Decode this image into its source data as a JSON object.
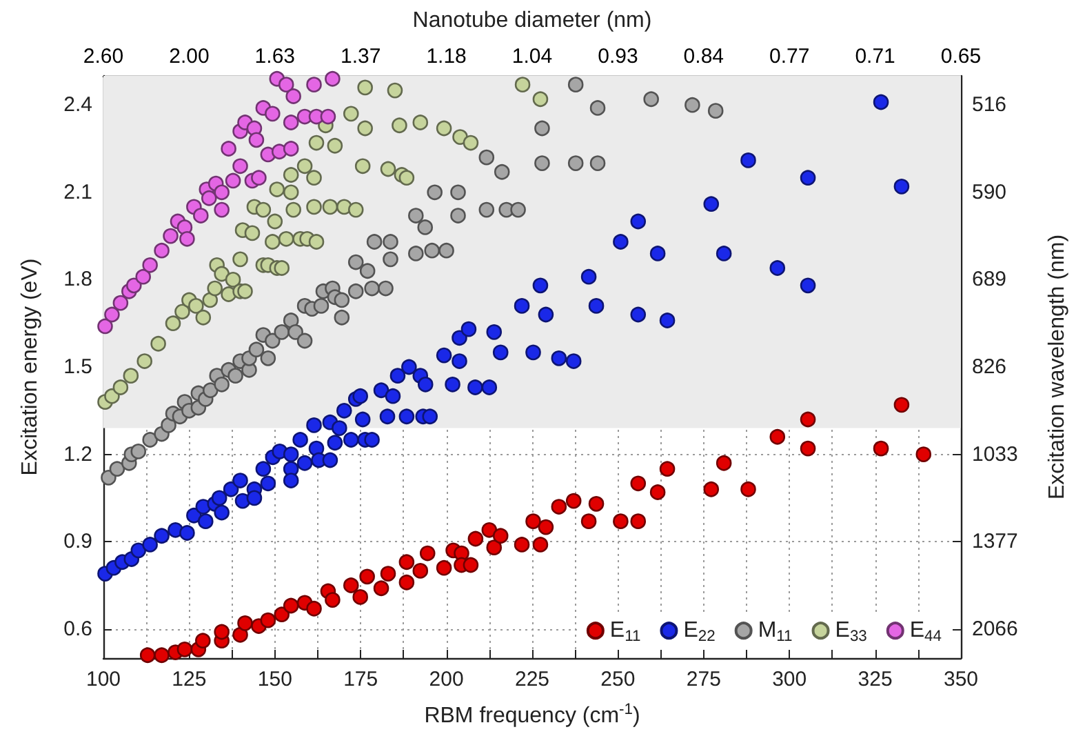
{
  "chart_data": {
    "type": "scatter",
    "xlabel": "RBM frequency (cm$^{-1}$)",
    "ylabel": "Excitation energy (eV)",
    "y2label": "Excitation wavelength (nm)",
    "x2label": "Nanotube diameter (nm)",
    "xlim": [
      100,
      350
    ],
    "ylim": [
      0.5,
      2.5
    ],
    "xticks": [
      100,
      {
        "value": 112.5,
        "label": null
      },
      125,
      {
        "value": 137.5,
        "label": null
      },
      150,
      {
        "value": 162.5,
        "label": null
      },
      175,
      {
        "value": 187.5,
        "label": null
      },
      200,
      {
        "value": 212.5,
        "label": null
      },
      225,
      {
        "value": 237.5,
        "label": null
      },
      250,
      {
        "value": 262.5,
        "label": null
      },
      275,
      {
        "value": 287.5,
        "label": null
      },
      300,
      {
        "value": 312.5,
        "label": null
      },
      325,
      {
        "value": 337.5,
        "label": null
      },
      350
    ],
    "yticks": [
      0.6,
      0.9,
      1.2,
      1.5,
      1.8,
      2.1,
      2.4
    ],
    "annotations": [
      "2.60",
      "2.00",
      "1.63",
      "1.37",
      "1.18",
      "1.04",
      "0.93",
      "0.84",
      "0.77",
      "0.71",
      "0.65"
    ],
    "y2_categories": [
      null,
      "516",
      null,
      null,
      "590",
      null,
      null,
      "689",
      null,
      null,
      "826",
      null,
      null,
      "1033",
      null,
      null,
      "1377",
      null,
      null,
      "2066",
      null
    ],
    "grid": true,
    "marker": "circle",
    "legend": "bottom right",
    "bands": [
      {
        "axis": "y",
        "from": 1.29,
        "to": 2.5,
        "color": "#ebebeb"
      }
    ],
    "series": [
      {
        "name": "E$_{11}$",
        "color": "#e00000",
        "x": [
          112.9,
          117,
          121,
          123.7,
          127.7,
          129,
          134.5,
          134.5,
          139.9,
          141.3,
          145.3,
          148,
          152,
          154.7,
          158.7,
          161.4,
          165.5,
          166.8,
          172.2,
          174.9,
          176.9,
          181,
          183,
          188.4,
          188.4,
          192.4,
          194.5,
          199.3,
          202,
          204.4,
          204.4,
          207.1,
          208.5,
          212.5,
          213.9,
          215.8,
          222,
          225.3,
          227.4,
          229,
          232.8,
          237.1,
          241.5,
          243.7,
          250.8,
          255.9,
          255.9,
          261.6,
          264.4,
          277.2,
          280.9,
          288,
          296.5,
          305.4,
          305.4,
          326.7,
          332.7,
          339.1
        ],
        "values": [
          0.51,
          0.51,
          0.52,
          0.53,
          0.53,
          0.56,
          0.56,
          0.59,
          0.58,
          0.62,
          0.61,
          0.63,
          0.65,
          0.68,
          0.69,
          0.67,
          0.73,
          0.7,
          0.75,
          0.71,
          0.78,
          0.74,
          0.79,
          0.76,
          0.83,
          0.8,
          0.86,
          0.81,
          0.87,
          0.86,
          0.82,
          0.82,
          0.91,
          0.94,
          0.88,
          0.92,
          0.89,
          0.97,
          0.89,
          0.95,
          1.02,
          1.04,
          0.97,
          1.03,
          0.97,
          0.97,
          1.1,
          1.07,
          1.15,
          1.08,
          1.17,
          1.08,
          1.26,
          1.32,
          1.22,
          1.22,
          1.37,
          1.2
        ]
      },
      {
        "name": "E$_{22}$",
        "color": "#1a28e8",
        "x": [
          100.5,
          103,
          105.5,
          108.2,
          110.2,
          113.6,
          117,
          121,
          124.4,
          126.4,
          129.1,
          129.8,
          132.5,
          133.8,
          134.5,
          137.2,
          139.9,
          140.6,
          144,
          144,
          146.6,
          148,
          149.4,
          151.4,
          154.7,
          154.7,
          154.7,
          157.4,
          158.7,
          161.4,
          162.1,
          162.8,
          166.1,
          166.1,
          167.5,
          168.8,
          170.2,
          172.2,
          173.6,
          174.9,
          175.6,
          176.3,
          178.3,
          181,
          182.8,
          184.4,
          185.8,
          188.4,
          189.1,
          192.4,
          193.2,
          193.9,
          195.2,
          199.3,
          201.8,
          203.8,
          203.8,
          206.5,
          208.4,
          212.5,
          213.9,
          215.8,
          222,
          225.3,
          227.4,
          229,
          232.8,
          237.1,
          241.5,
          243.7,
          250.8,
          255.9,
          255.9,
          261.6,
          264.4,
          277.2,
          280.9,
          288,
          296.5,
          305.4,
          305.4,
          326.7,
          332.7
        ],
        "values": [
          0.79,
          0.81,
          0.83,
          0.84,
          0.87,
          0.89,
          0.92,
          0.94,
          0.93,
          0.99,
          1.02,
          0.97,
          1.03,
          1.05,
          1.0,
          1.08,
          1.11,
          1.04,
          1.08,
          1.05,
          1.15,
          1.1,
          1.19,
          1.21,
          1.2,
          1.15,
          1.11,
          1.25,
          1.17,
          1.3,
          1.22,
          1.18,
          1.18,
          1.31,
          1.24,
          1.29,
          1.35,
          1.25,
          1.39,
          1.4,
          1.32,
          1.25,
          1.25,
          1.42,
          1.33,
          1.4,
          1.47,
          1.33,
          1.5,
          1.47,
          1.33,
          1.44,
          1.33,
          1.54,
          1.44,
          1.6,
          1.52,
          1.63,
          1.43,
          1.43,
          1.62,
          1.55,
          1.71,
          1.55,
          1.78,
          1.68,
          1.53,
          1.52,
          1.81,
          1.71,
          1.93,
          2.0,
          1.68,
          1.89,
          1.66,
          2.06,
          1.89,
          2.21,
          1.84,
          2.15,
          1.78,
          2.41,
          2.12
        ]
      },
      {
        "name": "M$_{11}$",
        "color": "#a6a6a6",
        "x": [
          101.5,
          104,
          107.5,
          108.2,
          110.2,
          113.6,
          117,
          119,
          120.3,
          122.3,
          123.7,
          125,
          127.7,
          127.7,
          129.8,
          131.2,
          133.1,
          134.5,
          136.5,
          138.5,
          139.9,
          142.5,
          142.5,
          144.6,
          146.6,
          148,
          149.3,
          152,
          154.7,
          156,
          158.7,
          158.7,
          160.8,
          163.5,
          164.1,
          166.8,
          167.5,
          169.5,
          169.5,
          173.6,
          173.6,
          177,
          178.3,
          179,
          182.3,
          183.7,
          183.7,
          191.1,
          191.1,
          193.8,
          195.8,
          196.6,
          200,
          203.4,
          203.4,
          211.7,
          211.7,
          216.2,
          217.5,
          220.9,
          227.9,
          227.9,
          237.7,
          237.7,
          244.1,
          244.1,
          259.7,
          271.7,
          278.5
        ],
        "values": [
          1.12,
          1.15,
          1.17,
          1.2,
          1.21,
          1.25,
          1.27,
          1.3,
          1.34,
          1.33,
          1.38,
          1.35,
          1.36,
          1.41,
          1.39,
          1.42,
          1.47,
          1.44,
          1.49,
          1.47,
          1.52,
          1.49,
          1.53,
          1.56,
          1.61,
          1.53,
          1.59,
          1.62,
          1.66,
          1.62,
          1.59,
          1.71,
          1.7,
          1.71,
          1.76,
          1.77,
          1.74,
          1.67,
          1.73,
          1.76,
          1.86,
          1.83,
          1.77,
          1.93,
          1.77,
          1.87,
          1.93,
          1.89,
          2.02,
          1.98,
          1.9,
          2.1,
          1.9,
          2.1,
          2.02,
          2.04,
          2.22,
          2.17,
          2.04,
          2.04,
          2.32,
          2.2,
          2.47,
          2.2,
          2.39,
          2.2,
          2.42,
          2.4,
          2.38
        ]
      },
      {
        "name": "E$_{33}$",
        "color": "#c6d49c",
        "x": [
          100.5,
          102.5,
          105,
          108,
          112,
          116,
          120.3,
          123,
          125,
          127,
          129.1,
          131.1,
          132.5,
          133.1,
          134.5,
          136.5,
          137.8,
          139.9,
          141.3,
          139.9,
          140.6,
          143.4,
          144,
          146.6,
          146.6,
          148,
          149.3,
          150,
          150.6,
          152,
          150.6,
          153.3,
          154.7,
          154.7,
          155.4,
          157.4,
          158.7,
          159.4,
          161.4,
          161.4,
          162.1,
          162.1,
          164.8,
          166.1,
          167.5,
          170.2,
          172.2,
          173.6,
          175.6,
          176.3,
          176.3,
          183,
          185,
          186.3,
          187,
          188.4,
          192.4,
          199.3,
          204,
          207.1,
          222.2,
          227.4
        ],
        "values": [
          1.38,
          1.4,
          1.43,
          1.47,
          1.52,
          1.58,
          1.65,
          1.69,
          1.73,
          1.71,
          1.67,
          1.73,
          1.77,
          1.85,
          1.82,
          1.75,
          1.8,
          1.76,
          1.76,
          1.87,
          1.97,
          1.96,
          2.05,
          2.04,
          1.85,
          1.85,
          1.93,
          2.0,
          1.84,
          1.84,
          2.11,
          1.94,
          2.16,
          2.1,
          2.04,
          1.94,
          2.19,
          1.94,
          2.15,
          2.05,
          1.93,
          2.27,
          2.33,
          2.05,
          2.26,
          2.05,
          2.37,
          2.04,
          2.19,
          2.32,
          2.46,
          2.18,
          2.45,
          2.33,
          2.16,
          2.15,
          2.34,
          2.32,
          2.29,
          2.27,
          2.47,
          2.42
        ]
      },
      {
        "name": "E$_{44}$",
        "color": "#e466e4",
        "x": [
          100.5,
          102.5,
          105,
          107.5,
          108.9,
          111.6,
          113.6,
          117,
          119.6,
          121.7,
          123.7,
          124.4,
          126.4,
          128.4,
          130.1,
          130.8,
          132.8,
          134.5,
          134.5,
          136.5,
          137.8,
          139.9,
          139.9,
          141.3,
          143.4,
          144,
          144.6,
          145.3,
          146.6,
          148,
          149.3,
          150.6,
          151.3,
          153.3,
          154.7,
          154.7,
          155.4,
          158.7,
          161.4,
          162.1,
          165.5,
          166.8
        ],
        "values": [
          1.64,
          1.68,
          1.72,
          1.76,
          1.78,
          1.81,
          1.85,
          1.9,
          1.95,
          2.0,
          1.98,
          1.94,
          2.05,
          2.02,
          2.11,
          2.08,
          2.13,
          2.1,
          2.04,
          2.25,
          2.14,
          2.19,
          2.31,
          2.34,
          2.14,
          2.32,
          2.28,
          2.15,
          2.39,
          2.23,
          2.37,
          2.49,
          2.24,
          2.47,
          2.25,
          2.34,
          2.43,
          2.36,
          2.47,
          2.36,
          2.36,
          2.49
        ]
      }
    ]
  }
}
